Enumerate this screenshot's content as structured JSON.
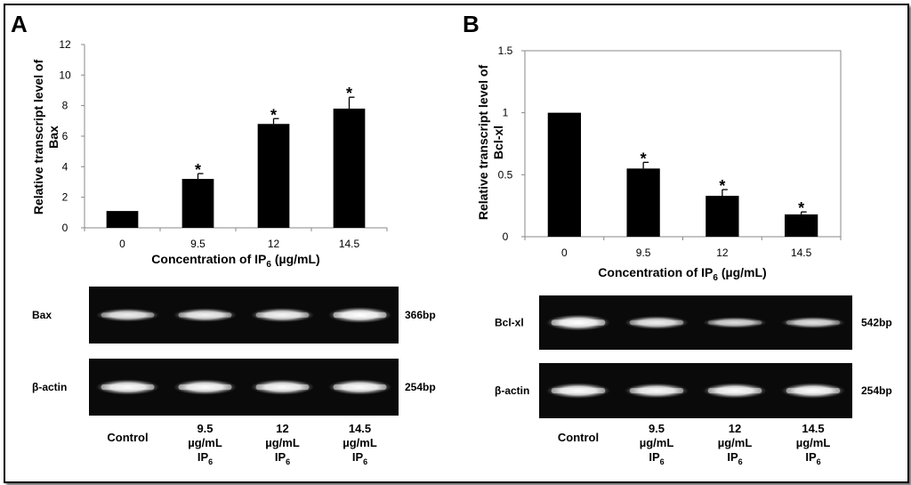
{
  "panels": [
    {
      "letter": "A",
      "chart_data": {
        "type": "bar",
        "categories": [
          "0",
          "9.5",
          "12",
          "14.5"
        ],
        "values": [
          1.1,
          3.2,
          6.8,
          7.8
        ],
        "errors": [
          0,
          0.35,
          0.35,
          0.75
        ],
        "significant": [
          false,
          true,
          true,
          true
        ],
        "marker": "*",
        "ylabel_line1": "Relative transcript level of",
        "ylabel_line2": "Bax",
        "xlabel_main": "Concentration of IP",
        "xlabel_sub": "6",
        "xlabel_tail": " (µg/mL)",
        "ylim": [
          0,
          12
        ],
        "yticks": [
          "0",
          "2",
          "4",
          "6",
          "8",
          "10",
          "12"
        ],
        "grid": false,
        "box": false
      },
      "gel": {
        "rows": [
          {
            "label": "Bax",
            "size": "366bp",
            "intensities": [
              0.75,
              0.8,
              0.85,
              1.0
            ]
          },
          {
            "label": "β-actin",
            "size": "254bp",
            "intensities": [
              0.95,
              0.95,
              0.95,
              0.95
            ]
          }
        ],
        "lanes": [
          {
            "line1": "Control",
            "line2": "",
            "line3": "",
            "sub": ""
          },
          {
            "line1": "9.5",
            "line2": "µg/mL",
            "line3": "IP",
            "sub": "6"
          },
          {
            "line1": "12",
            "line2": "µg/mL",
            "line3": "IP",
            "sub": "6"
          },
          {
            "line1": "14.5",
            "line2": "µg/mL",
            "line3": "IP",
            "sub": "6"
          }
        ]
      }
    },
    {
      "letter": "B",
      "chart_data": {
        "type": "bar",
        "categories": [
          "0",
          "9.5",
          "12",
          "14.5"
        ],
        "values": [
          1.0,
          0.55,
          0.33,
          0.18
        ],
        "errors": [
          0,
          0.05,
          0.05,
          0.02
        ],
        "significant": [
          false,
          true,
          true,
          true
        ],
        "marker": "*",
        "ylabel_line1": "Relative transcript level of",
        "ylabel_line2": "Bcl-xl",
        "xlabel_main": "Concentration of IP",
        "xlabel_sub": "6",
        "xlabel_tail": " (µg/mL)",
        "ylim": [
          0,
          1.5
        ],
        "yticks": [
          "0",
          "0.5",
          "1",
          "1.5"
        ],
        "grid": false,
        "box": true
      },
      "gel": {
        "rows": [
          {
            "label": "Bcl-xl",
            "size": "542bp",
            "intensities": [
              1.0,
              0.75,
              0.55,
              0.6
            ]
          },
          {
            "label": "β-actin",
            "size": "254bp",
            "intensities": [
              0.95,
              0.9,
              0.95,
              0.95
            ]
          }
        ],
        "lanes": [
          {
            "line1": "Control",
            "line2": "",
            "line3": "",
            "sub": ""
          },
          {
            "line1": "9.5",
            "line2": "µg/mL",
            "line3": "IP",
            "sub": "6"
          },
          {
            "line1": "12",
            "line2": "µg/mL",
            "line3": "IP",
            "sub": "6"
          },
          {
            "line1": "14.5",
            "line2": "µg/mL",
            "line3": "IP",
            "sub": "6"
          }
        ]
      }
    }
  ]
}
